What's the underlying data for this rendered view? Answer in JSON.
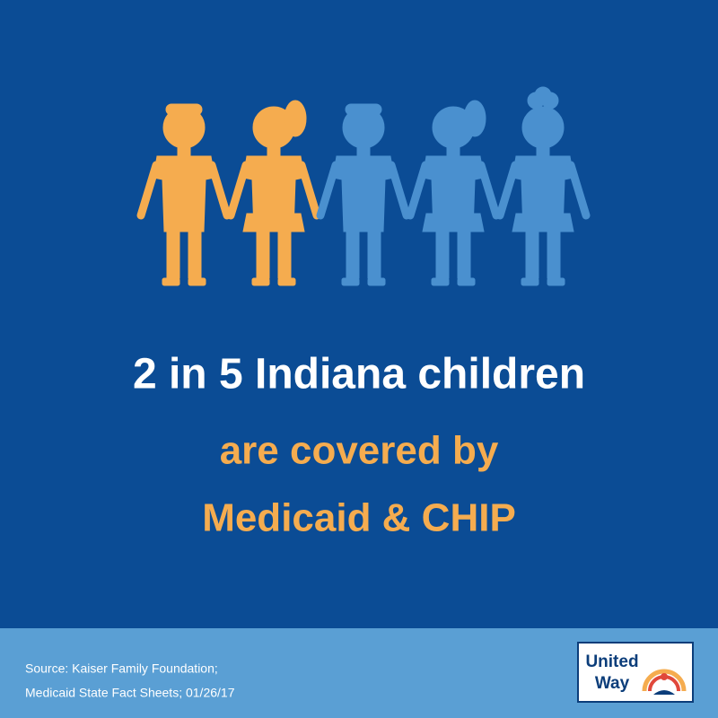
{
  "headline": "2 in 5 Indiana children",
  "subline": [
    "are covered by",
    "Medicaid & CHIP"
  ],
  "source": [
    "Source: Kaiser Family Foundation;",
    "Medicaid State Fact Sheets; 01/26/17"
  ],
  "logo": [
    "United",
    "Way"
  ]
}
